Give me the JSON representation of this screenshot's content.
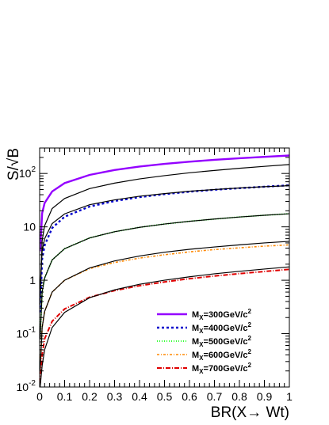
{
  "chart_data": {
    "type": "line",
    "xlabel": "BR(X→ Wt)",
    "ylabel": "S/√B",
    "xlim": [
      0,
      1
    ],
    "ylim": [
      0.01,
      300
    ],
    "yscale": "log",
    "grid": false,
    "legend_position": "bottom-right",
    "x_ticks": [
      "0",
      "0.1",
      "0.2",
      "0.3",
      "0.4",
      "0.5",
      "0.6",
      "0.7",
      "0.8",
      "0.9",
      "1"
    ],
    "y_ticks": [
      {
        "value": 0.01,
        "base": "10",
        "exp": "-2"
      },
      {
        "value": 0.1,
        "base": "10",
        "exp": "-1"
      },
      {
        "value": 1,
        "base": "1",
        "exp": ""
      },
      {
        "value": 10,
        "base": "10",
        "exp": ""
      },
      {
        "value": 100,
        "base": "10",
        "exp": "2"
      }
    ],
    "x": [
      0.002,
      0.01,
      0.02,
      0.05,
      0.1,
      0.2,
      0.3,
      0.4,
      0.5,
      0.6,
      0.7,
      0.8,
      0.9,
      1.0
    ],
    "series": [
      {
        "name_main": "M",
        "name_sub": "X",
        "name_rest": "=300GeV/c",
        "name_sup": "2",
        "color": "#9400ff",
        "dash": "",
        "width": 2.4,
        "values": [
          3.5,
          18,
          28,
          46,
          66,
          94,
          116,
          135,
          151,
          166,
          180,
          193,
          205,
          217
        ]
      },
      {
        "name": "",
        "color": "#000000",
        "dash": "",
        "width": 1.2,
        "values": [
          0.35,
          5.5,
          10.5,
          22,
          34,
          52,
          66,
          79,
          91,
          103,
          114,
          125,
          136,
          147
        ]
      },
      {
        "name_main": "M",
        "name_sub": "X",
        "name_rest": "=400GeV/c",
        "name_sup": "2",
        "color": "#0000cc",
        "dash": "3,3",
        "width": 2.4,
        "values": [
          0.25,
          2.5,
          4.5,
          9.5,
          15.5,
          24,
          30.5,
          36,
          41,
          45.5,
          49.5,
          53,
          56.5,
          60
        ]
      },
      {
        "name": "",
        "color": "#000000",
        "dash": "",
        "width": 1.2,
        "values": [
          0.7,
          3.5,
          6,
          11.5,
          17.5,
          26,
          32,
          37.5,
          42,
          46.5,
          50,
          53.5,
          56.5,
          59
        ]
      },
      {
        "name_main": "M",
        "name_sub": "X",
        "name_rest": "=500GeV/c",
        "name_sup": "2",
        "color": "#33ff33",
        "dash": "1,2",
        "width": 2.0,
        "values": [
          0.08,
          0.6,
          1.1,
          2.4,
          3.9,
          6.2,
          8.1,
          9.8,
          11.3,
          12.7,
          14,
          15.3,
          16.5,
          17.6
        ]
      },
      {
        "name": "",
        "color": "#000000",
        "dash": "",
        "width": 1.2,
        "values": [
          0.08,
          0.6,
          1.1,
          2.4,
          3.9,
          6.2,
          8.1,
          9.8,
          11.3,
          12.7,
          14,
          15.3,
          16.5,
          17.6
        ]
      },
      {
        "name_main": "M",
        "name_sub": "X",
        "name_rest": "=600GeV/c",
        "name_sup": "2",
        "color": "#ff8800",
        "dash": "3,2,1,2",
        "width": 1.6,
        "values": [
          0.02,
          0.13,
          0.26,
          0.6,
          1.0,
          1.65,
          2.15,
          2.6,
          3.0,
          3.4,
          3.75,
          4.05,
          4.35,
          4.6
        ]
      },
      {
        "name": "",
        "color": "#000000",
        "dash": "",
        "width": 1.2,
        "values": [
          0.02,
          0.13,
          0.26,
          0.6,
          1.0,
          1.7,
          2.3,
          2.85,
          3.35,
          3.8,
          4.2,
          4.6,
          5.0,
          5.35
        ]
      },
      {
        "name_main": "M",
        "name_sub": "X",
        "name_rest": "=700GeV/c",
        "name_sup": "2",
        "color": "#e00000",
        "dash": "6,2,1,2",
        "width": 2.0,
        "values": [
          0.012,
          0.04,
          0.08,
          0.17,
          0.29,
          0.48,
          0.64,
          0.79,
          0.93,
          1.07,
          1.2,
          1.33,
          1.46,
          1.6
        ]
      },
      {
        "name": "",
        "color": "#000000",
        "dash": "",
        "width": 1.2,
        "values": [
          0.01,
          0.025,
          0.05,
          0.13,
          0.25,
          0.47,
          0.66,
          0.84,
          1.0,
          1.16,
          1.32,
          1.47,
          1.62,
          1.78
        ]
      }
    ]
  }
}
